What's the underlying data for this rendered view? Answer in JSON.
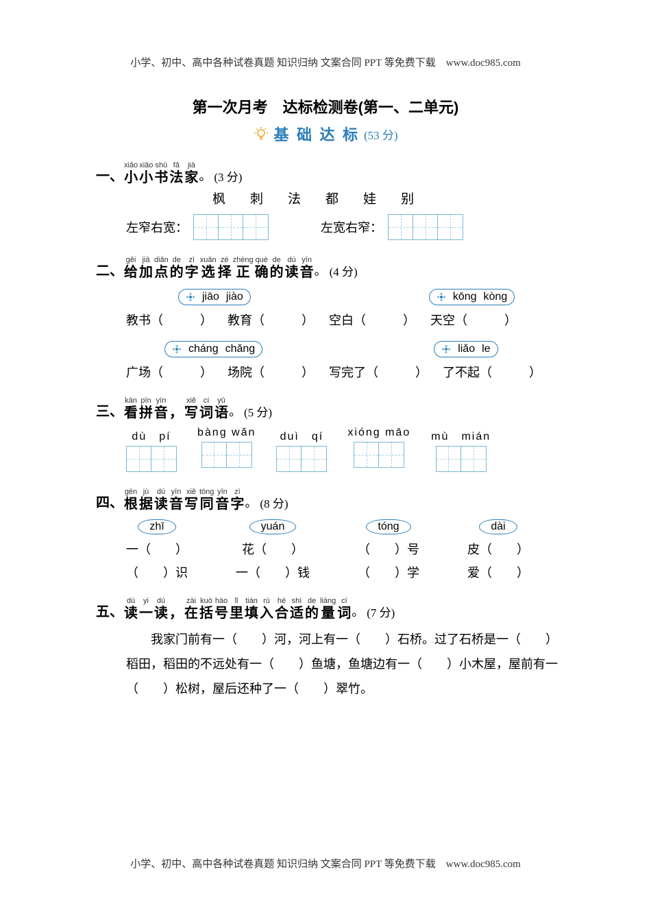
{
  "header": "小学、初中、高中各种试卷真题 知识归纳 文案合同 PPT 等免费下载　www.doc985.com",
  "footer": "小学、初中、高中各种试卷真题 知识归纳 文案合同 PPT 等免费下载　www.doc985.com",
  "title": "第一次月考　达标检测卷(第一、二单元)",
  "banner_label": "基 础 达 标",
  "banner_score": "(53 分)",
  "colors": {
    "accent": "#2a7db8",
    "accent_light": "#a8d0e8",
    "bulb": "#f5a623",
    "text": "#000000",
    "bg": "#ffffff"
  },
  "q1": {
    "num": "一、",
    "pinyin": [
      "xiǎo",
      "xiǎo",
      "shū",
      "fǎ",
      "jiā"
    ],
    "chars": [
      "小",
      "小",
      "书",
      "法",
      "家"
    ],
    "period": "。",
    "score": "(3 分)",
    "given_chars": [
      "枫",
      "刺",
      "法",
      "都",
      "娃",
      "别"
    ],
    "left_label": "左窄右宽：",
    "right_label": "左宽右窄：",
    "left_cells": 3,
    "right_cells": 3
  },
  "q2": {
    "num": "二、",
    "pinyin": [
      "gěi",
      "jiā",
      "diǎn",
      "de",
      "zì",
      "xuǎn",
      "zé",
      "zhèng",
      "què",
      "de",
      "dú",
      "yīn"
    ],
    "chars": [
      "给",
      "加",
      "点",
      "的",
      "字",
      "选",
      "择",
      "正",
      "确",
      "的",
      "读",
      "音"
    ],
    "period": "。",
    "score": "(4 分)",
    "row1_tag1": [
      "jiāo",
      "jiào"
    ],
    "row1_tag2": [
      "kōng",
      "kòng"
    ],
    "row1_items": [
      "教书（　　　）",
      "教育（　　　）",
      "空白（　　　）",
      "天空（　　　）"
    ],
    "row2_tag1": [
      "cháng",
      "chǎng"
    ],
    "row2_tag2": [
      "liǎo",
      "le"
    ],
    "row2_items": [
      "广场（　　　）",
      "场院（　　　）",
      "写完了（　　　）",
      "了不起（　　　）"
    ]
  },
  "q3": {
    "num": "三、",
    "pinyin": [
      "kàn",
      "pīn",
      "yīn",
      "",
      "xiě",
      "cí",
      "yǔ"
    ],
    "chars": [
      "看",
      "拼",
      "音",
      "，",
      "写",
      "词",
      "语"
    ],
    "period": "。",
    "score": "(5 分)",
    "items": [
      {
        "py": "dù　pí",
        "cells": 2
      },
      {
        "py": "bàng wǎn",
        "cells": 2
      },
      {
        "py": "duì　qí",
        "cells": 2
      },
      {
        "py": "xióng māo",
        "cells": 2
      },
      {
        "py": "mù　mián",
        "cells": 2
      }
    ]
  },
  "q4": {
    "num": "四、",
    "pinyin": [
      "gēn",
      "jù",
      "dú",
      "yīn",
      "xiě",
      "tóng",
      "yīn",
      "zì"
    ],
    "chars": [
      "根",
      "据",
      "读",
      "音",
      "写",
      "同",
      "音",
      "字"
    ],
    "period": "。",
    "score": "(8 分)",
    "cols": [
      {
        "py": "zhī",
        "l1": "一（　　）",
        "l2": "（　　）识"
      },
      {
        "py": "yuán",
        "l1": "花（　　）",
        "l2": "一（　　）钱"
      },
      {
        "py": "tóng",
        "l1": "（　　）号",
        "l2": "（　　）学"
      },
      {
        "py": "dài",
        "l1": "皮（　　）",
        "l2": "爱（　　）"
      }
    ]
  },
  "q5": {
    "num": "五、",
    "pinyin": [
      "dú",
      "yi",
      "dú",
      "",
      "zài",
      "kuò",
      "hào",
      "lǐ",
      "tián",
      "rù",
      "hé",
      "shì",
      "de",
      "liàng",
      "cí"
    ],
    "chars": [
      "读",
      "一",
      "读",
      "，",
      "在",
      "括",
      "号",
      "里",
      "填",
      "入",
      "合",
      "适",
      "的",
      "量",
      "词"
    ],
    "period": "。",
    "score": "(7 分)",
    "body": "我家门前有一（　　）河，河上有一（　　）石桥。过了石桥是一（　　）稻田，稻田的不远处有一（　　）鱼塘，鱼塘边有一（　　）小木屋，屋前有一（　　）松树，屋后还种了一（　　）翠竹。"
  }
}
